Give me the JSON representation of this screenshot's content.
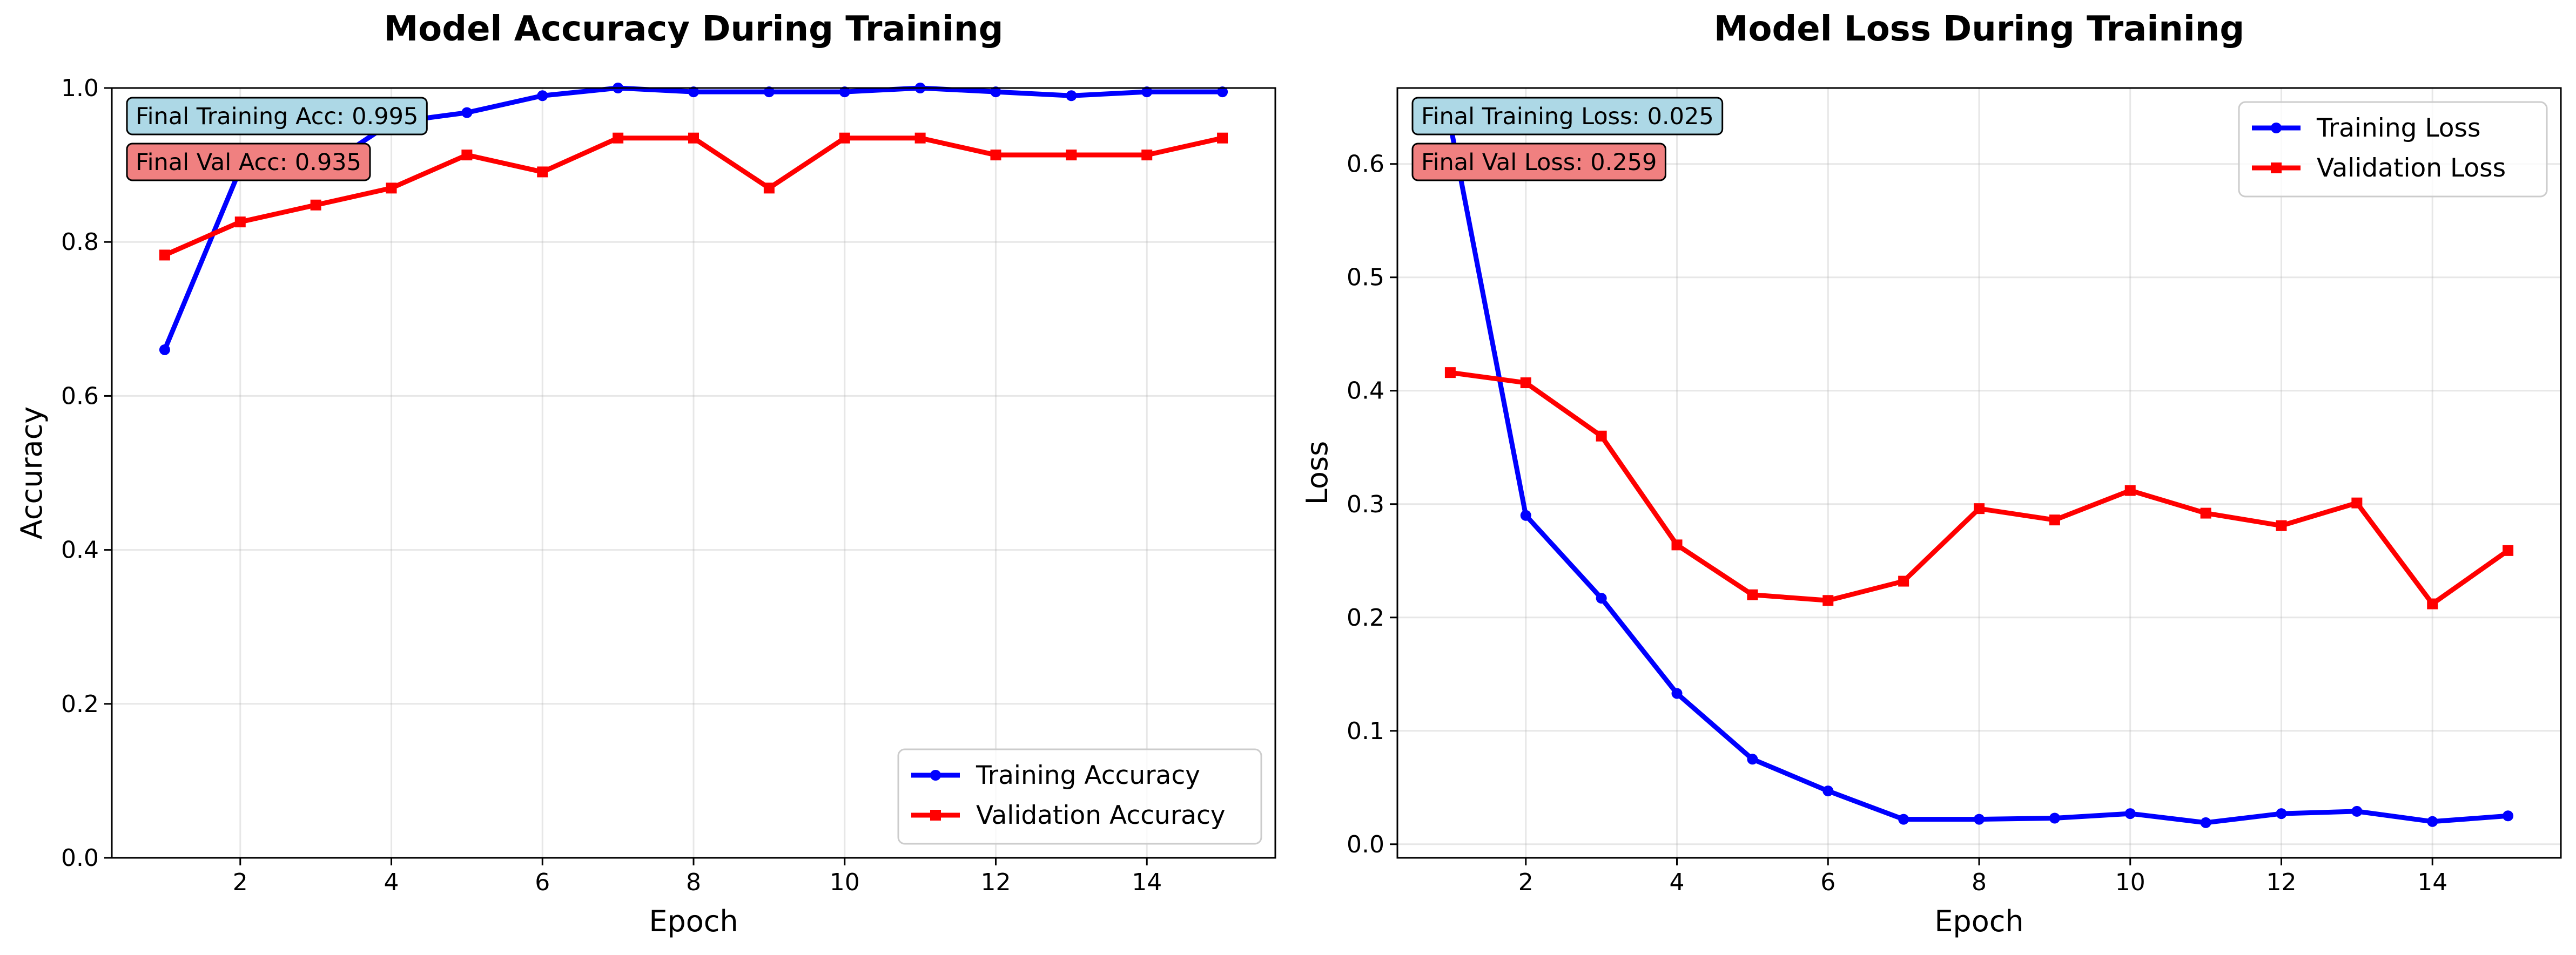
{
  "chart_data": [
    {
      "type": "line",
      "title": "Model Accuracy During Training",
      "xlabel": "Epoch",
      "ylabel": "Accuracy",
      "xlim": [
        0.3,
        15.7
      ],
      "ylim": [
        0.0,
        1.0
      ],
      "xticks": [
        2,
        4,
        6,
        8,
        10,
        12,
        14
      ],
      "yticks": [
        0.0,
        0.2,
        0.4,
        0.6,
        0.8,
        1.0
      ],
      "ytick_labels": [
        "0.0",
        "0.2",
        "0.4",
        "0.6",
        "0.8",
        "1.0"
      ],
      "grid": true,
      "legend_position": "lower-right",
      "x": [
        1,
        2,
        3,
        4,
        5,
        6,
        7,
        8,
        9,
        10,
        11,
        12,
        13,
        14,
        15
      ],
      "series": [
        {
          "name": "Training Accuracy",
          "color": "#0000ff",
          "marker": "circle",
          "values": [
            0.66,
            0.895,
            0.89,
            0.955,
            0.968,
            0.99,
            1.0,
            0.995,
            0.995,
            0.995,
            1.0,
            0.995,
            0.99,
            0.995,
            0.995
          ]
        },
        {
          "name": "Validation Accuracy",
          "color": "#ff0000",
          "marker": "square",
          "values": [
            0.783,
            0.826,
            0.848,
            0.87,
            0.913,
            0.891,
            0.935,
            0.935,
            0.87,
            0.935,
            0.935,
            0.913,
            0.913,
            0.913,
            0.935
          ]
        }
      ],
      "annotations": [
        {
          "text": "Final Training Acc: 0.995",
          "bg": "#add8e6"
        },
        {
          "text": "Final Val Acc: 0.935",
          "bg": "#f08080"
        }
      ]
    },
    {
      "type": "line",
      "title": "Model Loss During Training",
      "xlabel": "Epoch",
      "ylabel": "Loss",
      "xlim": [
        0.3,
        15.7
      ],
      "ylim": [
        -0.012,
        0.667
      ],
      "xticks": [
        2,
        4,
        6,
        8,
        10,
        12,
        14
      ],
      "yticks": [
        0.0,
        0.1,
        0.2,
        0.3,
        0.4,
        0.5,
        0.6
      ],
      "ytick_labels": [
        "0.0",
        "0.1",
        "0.2",
        "0.3",
        "0.4",
        "0.5",
        "0.6"
      ],
      "grid": true,
      "legend_position": "upper-right",
      "x": [
        1,
        2,
        3,
        4,
        5,
        6,
        7,
        8,
        9,
        10,
        11,
        12,
        13,
        14,
        15
      ],
      "series": [
        {
          "name": "Training Loss",
          "color": "#0000ff",
          "marker": "circle",
          "values": [
            0.635,
            0.29,
            0.217,
            0.133,
            0.075,
            0.047,
            0.022,
            0.022,
            0.023,
            0.027,
            0.019,
            0.027,
            0.029,
            0.02,
            0.025
          ]
        },
        {
          "name": "Validation Loss",
          "color": "#ff0000",
          "marker": "square",
          "values": [
            0.416,
            0.407,
            0.36,
            0.264,
            0.22,
            0.215,
            0.232,
            0.296,
            0.286,
            0.312,
            0.292,
            0.281,
            0.301,
            0.212,
            0.259
          ]
        }
      ],
      "annotations": [
        {
          "text": "Final Training Loss: 0.025",
          "bg": "#add8e6"
        },
        {
          "text": "Final Val Loss: 0.259",
          "bg": "#f08080"
        }
      ]
    }
  ]
}
